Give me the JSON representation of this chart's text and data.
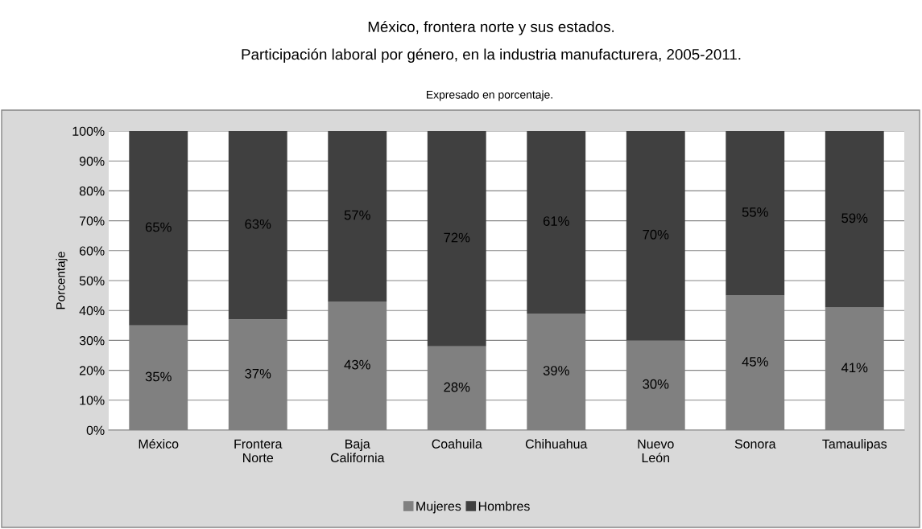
{
  "chart_data": {
    "type": "bar",
    "stacked": true,
    "title": "México, frontera norte y sus estados.\nParticipación laboral por género, en la industria manufacturera, 2005-2011.",
    "subtitle": "Expresado en porcentaje.",
    "ylabel": "Porcentaje",
    "categories": [
      "México",
      "Frontera\nNorte",
      "Baja\nCalifornia",
      "Coahuila",
      "Chihuahua",
      "Nuevo\nLeón",
      "Sonora",
      "Tamaulipas"
    ],
    "series": [
      {
        "name": "Mujeres",
        "color": "#808080",
        "values": [
          35,
          37,
          43,
          28,
          39,
          30,
          45,
          41
        ],
        "value_labels": [
          "35%",
          "37%",
          "43%",
          "28%",
          "39%",
          "30%",
          "45%",
          "41%"
        ]
      },
      {
        "name": "Hombres",
        "color": "#404040",
        "values": [
          65,
          63,
          57,
          72,
          61,
          70,
          55,
          59
        ],
        "value_labels": [
          "65%",
          "63%",
          "57%",
          "72%",
          "61%",
          "70%",
          "55%",
          "59%"
        ]
      }
    ],
    "ylim": [
      0,
      100
    ],
    "yticks": [
      {
        "value": 0,
        "label": "0%"
      },
      {
        "value": 10,
        "label": "10%"
      },
      {
        "value": 20,
        "label": "20%"
      },
      {
        "value": 30,
        "label": "30%"
      },
      {
        "value": 40,
        "label": "40%"
      },
      {
        "value": 50,
        "label": "50%"
      },
      {
        "value": 60,
        "label": "60%"
      },
      {
        "value": 70,
        "label": "70%"
      },
      {
        "value": 80,
        "label": "80%"
      },
      {
        "value": 90,
        "label": "90%"
      },
      {
        "value": 100,
        "label": "100%"
      }
    ],
    "grid": "y",
    "legend": "bottom"
  }
}
